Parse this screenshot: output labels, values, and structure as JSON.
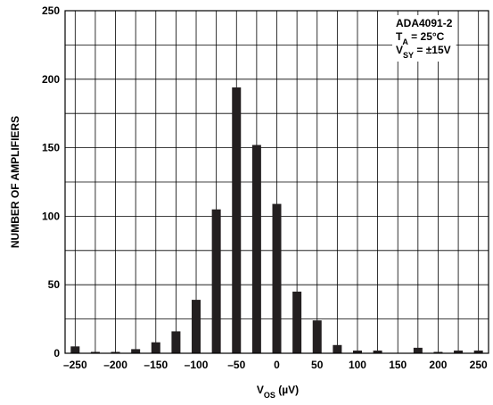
{
  "chart_data": {
    "type": "bar",
    "x": [
      -250,
      -225,
      -200,
      -175,
      -150,
      -125,
      -100,
      -75,
      -50,
      -25,
      0,
      25,
      50,
      75,
      100,
      125,
      150,
      175,
      200,
      225,
      250
    ],
    "values": [
      5,
      1,
      1,
      3,
      8,
      16,
      39,
      105,
      194,
      152,
      109,
      45,
      24,
      6,
      2,
      2,
      0,
      4,
      1,
      2,
      2
    ],
    "xticks": [
      "–250",
      "–200",
      "–150",
      "–100",
      "–50",
      "0",
      "50",
      "100",
      "150",
      "200",
      "250"
    ],
    "yticks": [
      "0",
      "50",
      "100",
      "150",
      "200",
      "250"
    ],
    "xlim": [
      -262.5,
      262.5
    ],
    "ylim": [
      0,
      250
    ],
    "xlabel": {
      "main": "V",
      "sub": "OS",
      "unit": " (µV)"
    },
    "ylabel": "NUMBER OF AMPLIFIERS",
    "grid": true,
    "bar_color": "#231f20",
    "legend": {
      "position": "top-right",
      "lines": [
        {
          "main": "ADA4091-2",
          "sub": "",
          "rest": ""
        },
        {
          "main": "T",
          "sub": "A",
          "rest": " = 25°C"
        },
        {
          "main": "V",
          "sub": "SY",
          "rest": " = ±15V"
        }
      ]
    }
  }
}
